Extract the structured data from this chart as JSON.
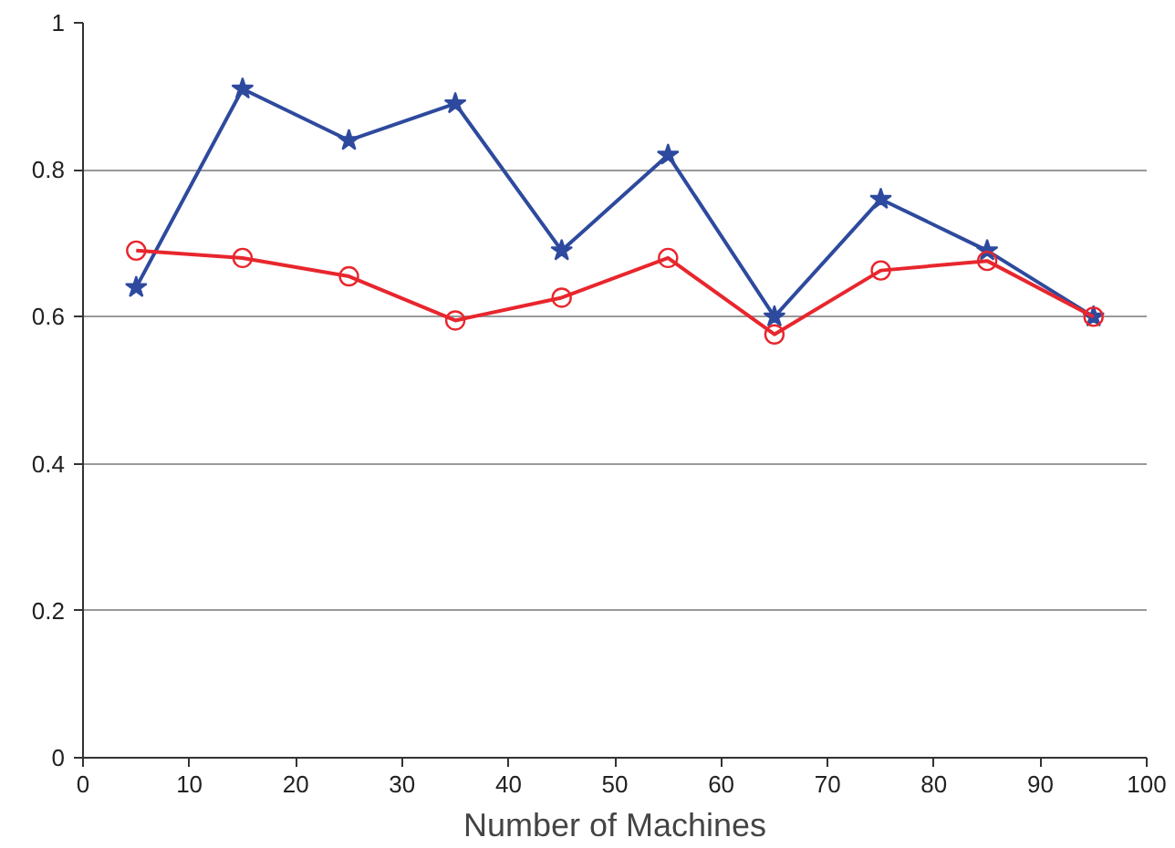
{
  "chart_data": {
    "type": "line",
    "xlabel": "Number of Machines",
    "x": [
      5,
      15,
      25,
      35,
      45,
      55,
      65,
      75,
      85,
      95
    ],
    "series": [
      {
        "color": "#2e4a9e",
        "marker": "star",
        "values": [
          0.64,
          0.91,
          0.84,
          0.89,
          0.69,
          0.82,
          0.6,
          0.76,
          0.69,
          0.6
        ]
      },
      {
        "color": "#e8262d",
        "marker": "circle",
        "values": [
          0.69,
          0.68,
          0.655,
          0.595,
          0.626,
          0.68,
          0.576,
          0.663,
          0.676,
          0.6
        ]
      }
    ],
    "xlim": [
      0,
      100
    ],
    "xticks": [
      0,
      10,
      20,
      30,
      40,
      50,
      60,
      70,
      80,
      90,
      100
    ],
    "ylim": [
      0,
      1
    ],
    "yticks": [
      0,
      0.2,
      0.4,
      0.6,
      0.8,
      1
    ],
    "grid": "y",
    "line_style": "solid"
  }
}
